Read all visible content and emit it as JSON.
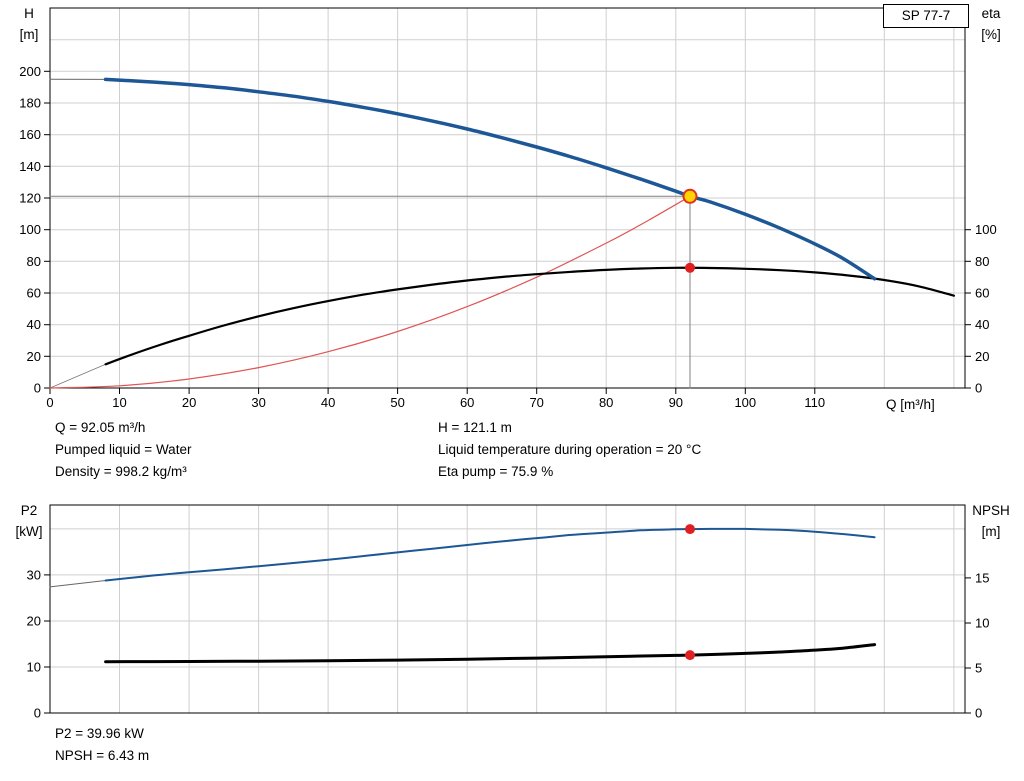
{
  "top_chart": {
    "model_label": "SP 77-7",
    "y_left_title": "H",
    "y_left_unit": "[m]",
    "y_right_title": "eta",
    "y_right_unit": "[%]",
    "x_title": "Q [m³/h]"
  },
  "bottom_chart": {
    "y_left_title": "P2",
    "y_left_unit": "[kW]",
    "y_right_title": "NPSH",
    "y_right_unit": "[m]"
  },
  "operating_point_info": {
    "q": "Q = 92.05 m³/h",
    "pumped_liquid": "Pumped liquid = Water",
    "density": "Density = 998.2 kg/m³",
    "h": "H = 121.1 m",
    "liquid_temp": "Liquid temperature during operation = 20 °C",
    "eta_pump": "Eta pump = 75.9 %"
  },
  "power_info": {
    "p2": "P2 = 39.96 kW",
    "npsh": "NPSH = 6.43 m"
  },
  "colors": {
    "curve_blue": "#1d5796",
    "curve_black": "#000000",
    "duty_parabola_red": "#e05555",
    "marker_red": "#e02020",
    "duty_point_yellow": "#ffd400",
    "grid_gray": "#cfcfcf",
    "crosshair_gray": "#808080"
  },
  "chart_data": [
    {
      "type": "line",
      "title": "SP 77-7",
      "xlabel": "Q [m³/h]",
      "ylabel_left": "H [m]",
      "ylabel_right": "eta [%]",
      "xlim": [
        0,
        131.6
      ],
      "ylim_left": [
        0,
        240
      ],
      "ylim_right": [
        0,
        240
      ],
      "xticks": [
        0,
        10,
        20,
        30,
        40,
        50,
        60,
        70,
        80,
        90,
        100,
        110
      ],
      "yticks_left": [
        0,
        20,
        40,
        60,
        80,
        100,
        120,
        140,
        160,
        180,
        200
      ],
      "yticks_right": [
        0,
        20,
        40,
        60,
        80,
        100
      ],
      "grid_x": [
        10,
        20,
        30,
        40,
        50,
        60,
        70,
        80,
        90,
        100,
        110,
        120,
        130
      ],
      "grid_y": [
        20,
        40,
        60,
        80,
        100,
        120,
        140,
        160,
        180,
        200,
        220
      ],
      "duty_point": {
        "Q": 92.05,
        "H": 121.1,
        "eta": 75.9
      },
      "series": [
        {
          "name": "head-curve-extension",
          "color": "#666666",
          "width": 1,
          "axis": "left",
          "smooth": false,
          "points": [
            [
              0,
              195
            ],
            [
              8,
              194.9
            ]
          ]
        },
        {
          "name": "eta-curve-extension",
          "color": "#777777",
          "width": 0.8,
          "axis": "right",
          "smooth": false,
          "points": [
            [
              0,
              0
            ],
            [
              8,
              15
            ]
          ]
        },
        {
          "name": "duty-parabola",
          "color": "#e05555",
          "width": 1.2,
          "axis": "left",
          "smooth": true,
          "points": [
            [
              0,
              0
            ],
            [
              10,
              1.4
            ],
            [
              20,
              5.7
            ],
            [
              30,
              12.9
            ],
            [
              40,
              22.9
            ],
            [
              50,
              35.7
            ],
            [
              60,
              51.4
            ],
            [
              70,
              70.0
            ],
            [
              80,
              91.5
            ],
            [
              86,
              105.7
            ],
            [
              92.05,
              121.1
            ]
          ]
        },
        {
          "name": "crosshair-horizontal",
          "color": "#808080",
          "width": 1,
          "axis": "left",
          "smooth": false,
          "points": [
            [
              0,
              121.1
            ],
            [
              92.05,
              121.1
            ]
          ]
        },
        {
          "name": "crosshair-vertical",
          "color": "#808080",
          "width": 1,
          "axis": "left",
          "smooth": false,
          "points": [
            [
              92.05,
              0
            ],
            [
              92.05,
              121.1
            ]
          ]
        },
        {
          "name": "eta-curve",
          "color": "#000000",
          "width": 2.2,
          "axis": "right",
          "smooth": true,
          "points": [
            [
              8,
              15
            ],
            [
              12,
              21.5
            ],
            [
              16,
              27.5
            ],
            [
              20,
              33
            ],
            [
              25,
              39.5
            ],
            [
              30,
              45.3
            ],
            [
              35,
              50.4
            ],
            [
              40,
              54.9
            ],
            [
              45,
              58.9
            ],
            [
              50,
              62.3
            ],
            [
              55,
              65.3
            ],
            [
              60,
              67.9
            ],
            [
              65,
              70.1
            ],
            [
              70,
              71.9
            ],
            [
              75,
              73.4
            ],
            [
              80,
              74.6
            ],
            [
              85,
              75.5
            ],
            [
              90,
              75.9
            ],
            [
              95,
              75.8
            ],
            [
              100,
              75.3
            ],
            [
              105,
              74.4
            ],
            [
              110,
              73.0
            ],
            [
              115,
              71.0
            ],
            [
              120,
              68.2
            ],
            [
              125,
              64.2
            ],
            [
              130,
              58.3
            ]
          ]
        },
        {
          "name": "head-curve",
          "color": "#1d5796",
          "width": 3.5,
          "axis": "left",
          "smooth": true,
          "points": [
            [
              8,
              194.9
            ],
            [
              15,
              193.2
            ],
            [
              20,
              191.6
            ],
            [
              25,
              189.6
            ],
            [
              30,
              187.1
            ],
            [
              35,
              184.3
            ],
            [
              40,
              181.0
            ],
            [
              45,
              177.3
            ],
            [
              50,
              173.2
            ],
            [
              55,
              168.6
            ],
            [
              60,
              163.6
            ],
            [
              65,
              158.1
            ],
            [
              70,
              152.2
            ],
            [
              75,
              145.9
            ],
            [
              80,
              139.1
            ],
            [
              85,
              131.9
            ],
            [
              90,
              124.3
            ],
            [
              92.05,
              121.1
            ],
            [
              95,
              117.5
            ],
            [
              100,
              109.7
            ],
            [
              105,
              100.9
            ],
            [
              110,
              91.0
            ],
            [
              114,
              82.0
            ],
            [
              118.6,
              69.0
            ]
          ]
        }
      ],
      "markers": [
        {
          "name": "duty-point",
          "x": 92.05,
          "y": 121.1,
          "axis": "left",
          "r": 6.5,
          "fill": "#ffd400",
          "stroke": "#e03020",
          "stroke_width": 2
        },
        {
          "name": "eta-point",
          "x": 92.05,
          "y": 75.9,
          "axis": "right",
          "r": 5,
          "fill": "#e02020",
          "stroke": "none",
          "stroke_width": 0
        }
      ]
    },
    {
      "type": "line",
      "title": "",
      "xlabel": "",
      "ylabel_left": "P2 [kW]",
      "ylabel_right": "NPSH [m]",
      "xlim": [
        0,
        131.6
      ],
      "ylim_left": [
        0,
        45.2
      ],
      "ylim_right": [
        0,
        23.1
      ],
      "xticks": [],
      "yticks_left": [
        0,
        10,
        20,
        30
      ],
      "yticks_right": [
        0,
        5,
        10,
        15
      ],
      "grid_x": [
        10,
        20,
        30,
        40,
        50,
        60,
        70,
        80,
        90,
        100,
        110,
        120,
        130
      ],
      "grid_y": [
        10,
        20,
        30,
        40
      ],
      "duty_point": {
        "Q": 92.05,
        "P2": 39.96,
        "NPSH": 6.43
      },
      "series": [
        {
          "name": "p2-curve-extension",
          "color": "#666666",
          "width": 1,
          "axis": "left",
          "smooth": false,
          "points": [
            [
              0,
              27.4
            ],
            [
              8,
              28.8
            ]
          ]
        },
        {
          "name": "p2-curve",
          "color": "#1d5796",
          "width": 2,
          "axis": "left",
          "smooth": true,
          "points": [
            [
              8,
              28.8
            ],
            [
              15,
              29.9
            ],
            [
              20,
              30.6
            ],
            [
              25,
              31.2
            ],
            [
              30,
              31.9
            ],
            [
              35,
              32.6
            ],
            [
              40,
              33.3
            ],
            [
              45,
              34.1
            ],
            [
              50,
              34.9
            ],
            [
              55,
              35.7
            ],
            [
              60,
              36.5
            ],
            [
              65,
              37.3
            ],
            [
              70,
              38.0
            ],
            [
              75,
              38.7
            ],
            [
              80,
              39.2
            ],
            [
              85,
              39.7
            ],
            [
              90,
              39.93
            ],
            [
              92.05,
              39.96
            ],
            [
              95,
              40.0
            ],
            [
              100,
              40.0
            ],
            [
              105,
              39.8
            ],
            [
              110,
              39.4
            ],
            [
              114,
              38.9
            ],
            [
              118.6,
              38.2
            ]
          ]
        },
        {
          "name": "npsh-curve",
          "color": "#000000",
          "width": 3,
          "axis": "right",
          "smooth": true,
          "points": [
            [
              8,
              5.7
            ],
            [
              20,
              5.72
            ],
            [
              30,
              5.75
            ],
            [
              40,
              5.8
            ],
            [
              50,
              5.87
            ],
            [
              60,
              5.97
            ],
            [
              70,
              6.1
            ],
            [
              80,
              6.25
            ],
            [
              90,
              6.4
            ],
            [
              92.05,
              6.43
            ],
            [
              100,
              6.62
            ],
            [
              105,
              6.78
            ],
            [
              110,
              6.98
            ],
            [
              114,
              7.2
            ],
            [
              118.6,
              7.6
            ]
          ]
        }
      ],
      "markers": [
        {
          "name": "p2-point",
          "x": 92.05,
          "y": 39.96,
          "axis": "left",
          "r": 5,
          "fill": "#e02020",
          "stroke": "none",
          "stroke_width": 0
        },
        {
          "name": "npsh-point",
          "x": 92.05,
          "y": 6.43,
          "axis": "right",
          "r": 5,
          "fill": "#e02020",
          "stroke": "none",
          "stroke_width": 0
        }
      ]
    }
  ]
}
